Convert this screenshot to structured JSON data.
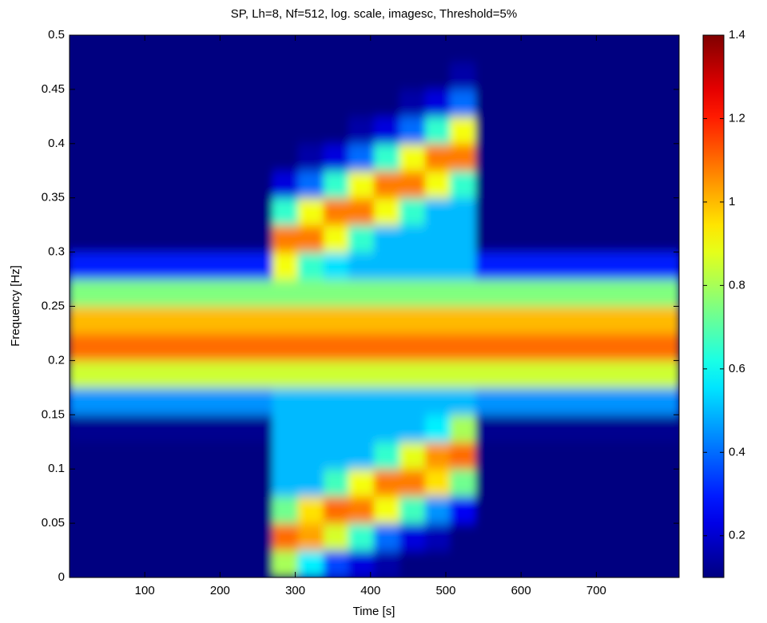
{
  "chart_data": {
    "type": "heatmap",
    "title": "SP, Lh=8, Nf=512, log. scale, imagesc, Threshold=5%",
    "xlabel": "Time [s]",
    "ylabel": "Frequency [Hz]",
    "x": [
      0,
      270,
      304,
      338,
      371,
      405,
      439,
      473,
      506,
      540,
      810
    ],
    "y": [
      0,
      0.025,
      0.05,
      0.075,
      0.1,
      0.125,
      0.15,
      0.175,
      0.2,
      0.225,
      0.25,
      0.275,
      0.3,
      0.325,
      0.35,
      0.375,
      0.4,
      0.425,
      0.45,
      0.475,
      0.5
    ],
    "z": [
      [
        0.1,
        0.8,
        0.57,
        0.35,
        0.22,
        0.15,
        0.1,
        0.1,
        0.1,
        0.1
      ],
      [
        0.1,
        1.1,
        1.03,
        0.86,
        0.65,
        0.4,
        0.22,
        0.17,
        0.1,
        0.1
      ],
      [
        0.1,
        0.73,
        0.95,
        1.1,
        1.08,
        0.9,
        0.67,
        0.45,
        0.25,
        0.1
      ],
      [
        0.1,
        0.5,
        0.5,
        0.67,
        0.9,
        1.08,
        1.08,
        0.95,
        0.73,
        0.1
      ],
      [
        0.1,
        0.5,
        0.5,
        0.5,
        0.5,
        0.65,
        0.88,
        1.05,
        1.1,
        0.1
      ],
      [
        0.12,
        0.5,
        0.5,
        0.5,
        0.5,
        0.5,
        0.5,
        0.57,
        0.8,
        0.12
      ],
      [
        0.45,
        0.5,
        0.5,
        0.5,
        0.5,
        0.5,
        0.5,
        0.5,
        0.5,
        0.45
      ],
      [
        0.85,
        0.85,
        0.85,
        0.85,
        0.85,
        0.85,
        0.85,
        0.85,
        0.85,
        0.85
      ],
      [
        1.1,
        1.1,
        1.1,
        1.1,
        1.1,
        1.1,
        1.1,
        1.1,
        1.1,
        1.1
      ],
      [
        1.0,
        1.0,
        1.0,
        1.0,
        1.0,
        1.0,
        1.0,
        1.0,
        1.0,
        1.0
      ],
      [
        0.75,
        0.75,
        0.75,
        0.75,
        0.75,
        0.75,
        0.75,
        0.75,
        0.75,
        0.75
      ],
      [
        0.3,
        0.9,
        0.65,
        0.55,
        0.5,
        0.5,
        0.5,
        0.5,
        0.5,
        0.3
      ],
      [
        0.1,
        1.08,
        1.08,
        0.9,
        0.65,
        0.5,
        0.5,
        0.5,
        0.5,
        0.1
      ],
      [
        0.1,
        0.65,
        0.9,
        1.08,
        1.08,
        0.9,
        0.65,
        0.5,
        0.5,
        0.1
      ],
      [
        0.1,
        0.22,
        0.4,
        0.65,
        0.9,
        1.08,
        1.08,
        0.9,
        0.65,
        0.1
      ],
      [
        0.1,
        0.1,
        0.15,
        0.22,
        0.4,
        0.65,
        0.9,
        1.08,
        1.08,
        0.1
      ],
      [
        0.1,
        0.1,
        0.1,
        0.1,
        0.15,
        0.22,
        0.4,
        0.65,
        0.9,
        0.1
      ],
      [
        0.1,
        0.1,
        0.1,
        0.1,
        0.1,
        0.1,
        0.15,
        0.22,
        0.4,
        0.1
      ],
      [
        0.1,
        0.1,
        0.1,
        0.1,
        0.1,
        0.1,
        0.1,
        0.1,
        0.15,
        0.1
      ],
      [
        0.1,
        0.1,
        0.1,
        0.1,
        0.1,
        0.1,
        0.1,
        0.1,
        0.1,
        0.1
      ]
    ],
    "xlim": [
      0,
      810
    ],
    "ylim": [
      0,
      0.5
    ],
    "xticks": [
      100,
      200,
      300,
      400,
      500,
      600,
      700
    ],
    "yticks": [
      0,
      0.05,
      0.1,
      0.15,
      0.2,
      0.25,
      0.3,
      0.35,
      0.4,
      0.45,
      0.5
    ],
    "colormap": "jet",
    "clim": [
      0.1,
      1.4
    ],
    "cticks": [
      0.2,
      0.4,
      0.6,
      0.8,
      1,
      1.2,
      1.4
    ]
  }
}
